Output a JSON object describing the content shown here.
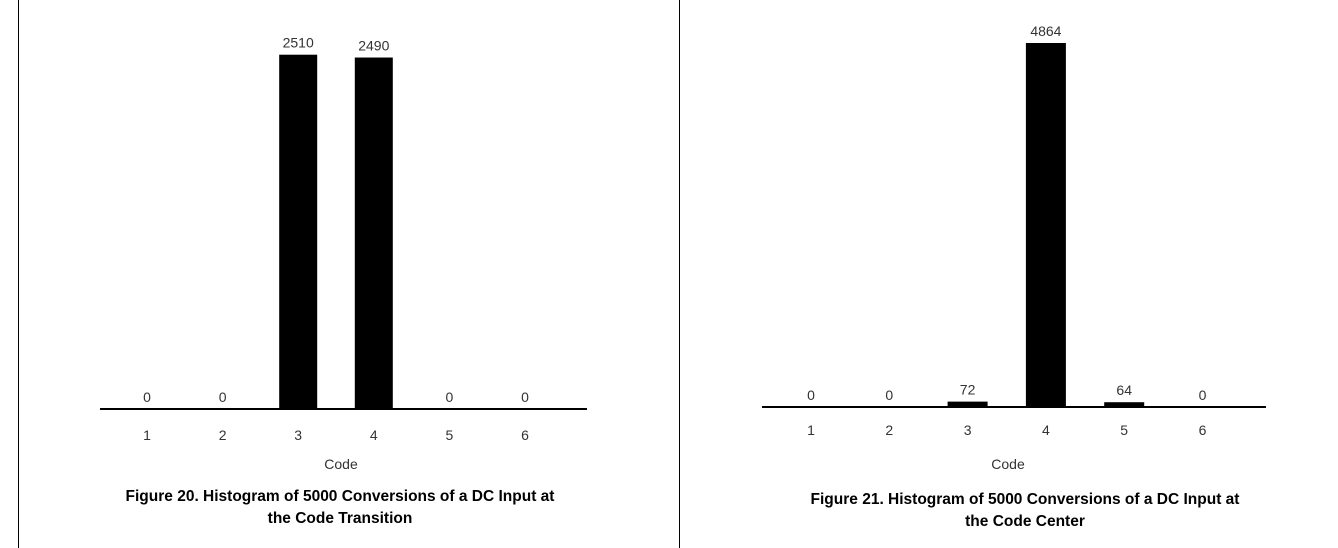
{
  "chart_data": [
    {
      "type": "bar",
      "xlabel": "Code",
      "ylabel": "",
      "categories": [
        "1",
        "2",
        "3",
        "4",
        "5",
        "6"
      ],
      "values": [
        0,
        0,
        2510,
        2490,
        0,
        0
      ],
      "data_labels": [
        "0",
        "0",
        "2510",
        "2490",
        "0",
        "0"
      ],
      "ylim": [
        0,
        2600
      ],
      "grid": false,
      "caption_line1": "Figure 20. Histogram of 5000 Conversions of a DC Input at",
      "caption_line2": "the Code Transition"
    },
    {
      "type": "bar",
      "xlabel": "Code",
      "ylabel": "",
      "categories": [
        "1",
        "2",
        "3",
        "4",
        "5",
        "6"
      ],
      "values": [
        0,
        0,
        72,
        4864,
        64,
        0
      ],
      "data_labels": [
        "0",
        "0",
        "72",
        "4864",
        "64",
        "0"
      ],
      "ylim": [
        0,
        4864
      ],
      "grid": false,
      "caption_line1": "Figure 21. Histogram of 5000 Conversions of a DC Input at",
      "caption_line2": "the Code Center"
    }
  ],
  "colors": {
    "bar": "#000000",
    "text": "#333333",
    "frame": "#000000"
  }
}
